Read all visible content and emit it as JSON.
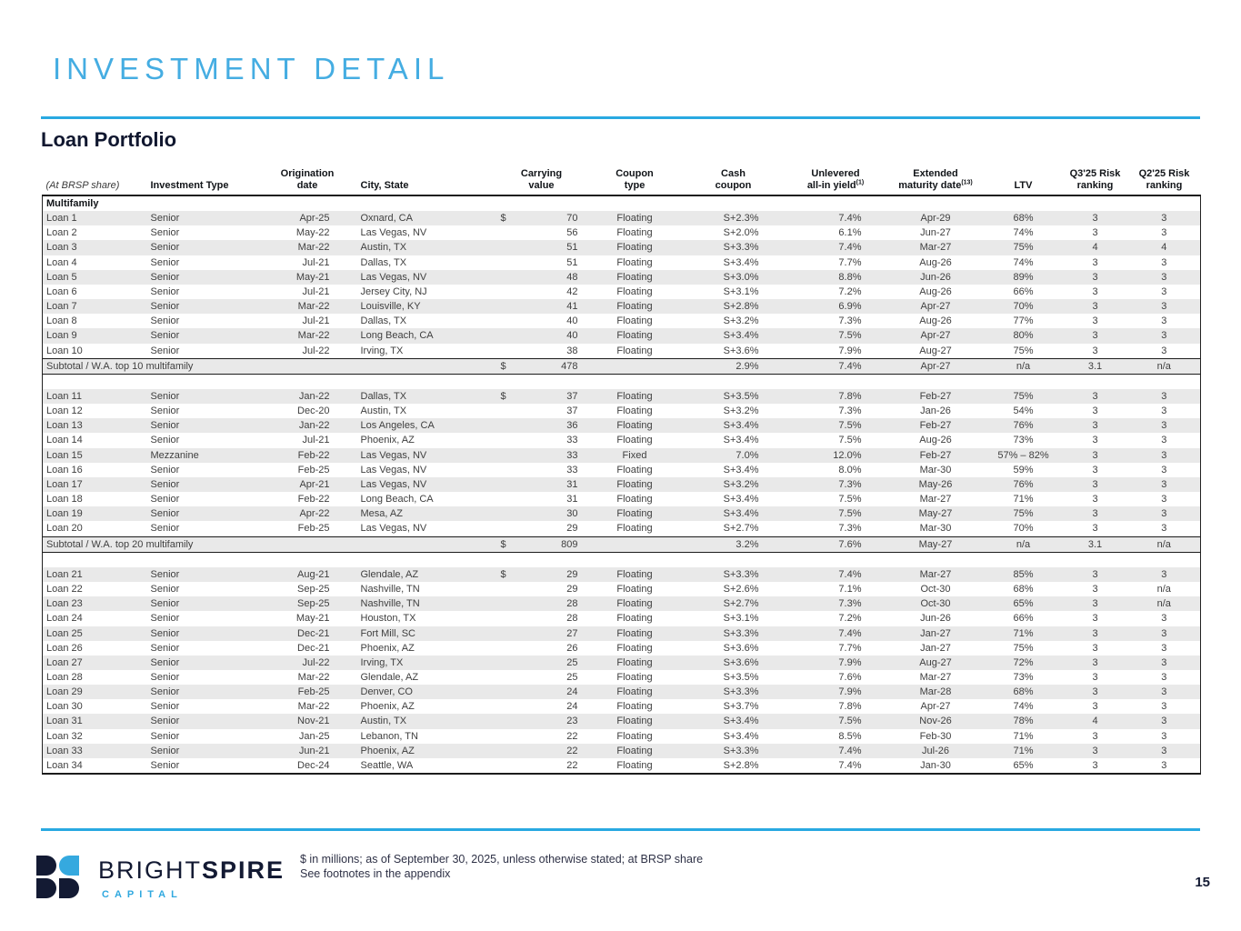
{
  "page": {
    "title": "INVESTMENT DETAIL",
    "section_title": "Loan Portfolio",
    "page_number": "15",
    "footnote_line1": "$ in millions; as of September 30, 2025, unless otherwise stated; at BRSP share",
    "footnote_line2": "See footnotes in the appendix"
  },
  "logo": {
    "brand_light": "BRIGHT",
    "brand_bold": "SPIRE",
    "subtitle": "CAPITAL"
  },
  "colors": {
    "accent_blue": "#29A9E1",
    "title_blue": "#45ADE2",
    "navy": "#131A33",
    "stripe_gray": "#E9E9E9"
  },
  "table": {
    "group_label": "Multifamily",
    "headers": {
      "share": "(At BRSP share)",
      "investment_type": "Investment Type",
      "origination_l1": "Origination",
      "origination_l2": "date",
      "city": "City, State",
      "carrying_l1": "Carrying",
      "carrying_l2": "value",
      "coupon_type_l1": "Coupon",
      "coupon_type_l2": "type",
      "cash_l1": "Cash",
      "cash_l2": "coupon",
      "unlevered_l1": "Unlevered",
      "unlevered_l2": "all-in yield",
      "unlevered_sup": "(1)",
      "maturity_l1": "Extended",
      "maturity_l2": "maturity date",
      "maturity_sup": "(13)",
      "ltv": "LTV",
      "q3_l1": "Q3'25 Risk",
      "q3_l2": "ranking",
      "q2_l1": "Q2'25 Risk",
      "q2_l2": "ranking"
    },
    "loans": [
      {
        "id": "Loan 1",
        "type": "Senior",
        "date": "Apr-25",
        "city": "Oxnard, CA",
        "d": "$",
        "v": "70",
        "ct": "Floating",
        "cc": "S+2.3%",
        "y": "7.4%",
        "m": "Apr-29",
        "ltv": "68%",
        "q3": "3",
        "q2": "3"
      },
      {
        "id": "Loan 2",
        "type": "Senior",
        "date": "May-22",
        "city": "Las Vegas, NV",
        "d": "",
        "v": "56",
        "ct": "Floating",
        "cc": "S+2.0%",
        "y": "6.1%",
        "m": "Jun-27",
        "ltv": "74%",
        "q3": "3",
        "q2": "3"
      },
      {
        "id": "Loan 3",
        "type": "Senior",
        "date": "Mar-22",
        "city": "Austin, TX",
        "d": "",
        "v": "51",
        "ct": "Floating",
        "cc": "S+3.3%",
        "y": "7.4%",
        "m": "Mar-27",
        "ltv": "75%",
        "q3": "4",
        "q2": "4"
      },
      {
        "id": "Loan 4",
        "type": "Senior",
        "date": "Jul-21",
        "city": "Dallas, TX",
        "d": "",
        "v": "51",
        "ct": "Floating",
        "cc": "S+3.4%",
        "y": "7.7%",
        "m": "Aug-26",
        "ltv": "74%",
        "q3": "3",
        "q2": "3"
      },
      {
        "id": "Loan 5",
        "type": "Senior",
        "date": "May-21",
        "city": "Las Vegas, NV",
        "d": "",
        "v": "48",
        "ct": "Floating",
        "cc": "S+3.0%",
        "y": "8.8%",
        "m": "Jun-26",
        "ltv": "89%",
        "q3": "3",
        "q2": "3"
      },
      {
        "id": "Loan 6",
        "type": "Senior",
        "date": "Jul-21",
        "city": "Jersey City, NJ",
        "d": "",
        "v": "42",
        "ct": "Floating",
        "cc": "S+3.1%",
        "y": "7.2%",
        "m": "Aug-26",
        "ltv": "66%",
        "q3": "3",
        "q2": "3"
      },
      {
        "id": "Loan 7",
        "type": "Senior",
        "date": "Mar-22",
        "city": "Louisville, KY",
        "d": "",
        "v": "41",
        "ct": "Floating",
        "cc": "S+2.8%",
        "y": "6.9%",
        "m": "Apr-27",
        "ltv": "70%",
        "q3": "3",
        "q2": "3"
      },
      {
        "id": "Loan 8",
        "type": "Senior",
        "date": "Jul-21",
        "city": "Dallas, TX",
        "d": "",
        "v": "40",
        "ct": "Floating",
        "cc": "S+3.2%",
        "y": "7.3%",
        "m": "Aug-26",
        "ltv": "77%",
        "q3": "3",
        "q2": "3"
      },
      {
        "id": "Loan 9",
        "type": "Senior",
        "date": "Mar-22",
        "city": "Long Beach, CA",
        "d": "",
        "v": "40",
        "ct": "Floating",
        "cc": "S+3.4%",
        "y": "7.5%",
        "m": "Apr-27",
        "ltv": "80%",
        "q3": "3",
        "q2": "3"
      },
      {
        "id": "Loan 10",
        "type": "Senior",
        "date": "Jul-22",
        "city": "Irving, TX",
        "d": "",
        "v": "38",
        "ct": "Floating",
        "cc": "S+3.6%",
        "y": "7.9%",
        "m": "Aug-27",
        "ltv": "75%",
        "q3": "3",
        "q2": "3"
      },
      {
        "id": "Loan 11",
        "type": "Senior",
        "date": "Jan-22",
        "city": "Dallas, TX",
        "d": "$",
        "v": "37",
        "ct": "Floating",
        "cc": "S+3.5%",
        "y": "7.8%",
        "m": "Feb-27",
        "ltv": "75%",
        "q3": "3",
        "q2": "3"
      },
      {
        "id": "Loan 12",
        "type": "Senior",
        "date": "Dec-20",
        "city": "Austin, TX",
        "d": "",
        "v": "37",
        "ct": "Floating",
        "cc": "S+3.2%",
        "y": "7.3%",
        "m": "Jan-26",
        "ltv": "54%",
        "q3": "3",
        "q2": "3"
      },
      {
        "id": "Loan 13",
        "type": "Senior",
        "date": "Jan-22",
        "city": "Los Angeles, CA",
        "d": "",
        "v": "36",
        "ct": "Floating",
        "cc": "S+3.4%",
        "y": "7.5%",
        "m": "Feb-27",
        "ltv": "76%",
        "q3": "3",
        "q2": "3"
      },
      {
        "id": "Loan 14",
        "type": "Senior",
        "date": "Jul-21",
        "city": "Phoenix, AZ",
        "d": "",
        "v": "33",
        "ct": "Floating",
        "cc": "S+3.4%",
        "y": "7.5%",
        "m": "Aug-26",
        "ltv": "73%",
        "q3": "3",
        "q2": "3"
      },
      {
        "id": "Loan 15",
        "type": "Mezzanine",
        "date": "Feb-22",
        "city": "Las Vegas, NV",
        "d": "",
        "v": "33",
        "ct": "Fixed",
        "cc": "7.0%",
        "y": "12.0%",
        "m": "Feb-27",
        "ltv": "57% – 82%",
        "q3": "3",
        "q2": "3"
      },
      {
        "id": "Loan 16",
        "type": "Senior",
        "date": "Feb-25",
        "city": "Las Vegas, NV",
        "d": "",
        "v": "33",
        "ct": "Floating",
        "cc": "S+3.4%",
        "y": "8.0%",
        "m": "Mar-30",
        "ltv": "59%",
        "q3": "3",
        "q2": "3"
      },
      {
        "id": "Loan 17",
        "type": "Senior",
        "date": "Apr-21",
        "city": "Las Vegas, NV",
        "d": "",
        "v": "31",
        "ct": "Floating",
        "cc": "S+3.2%",
        "y": "7.3%",
        "m": "May-26",
        "ltv": "76%",
        "q3": "3",
        "q2": "3"
      },
      {
        "id": "Loan 18",
        "type": "Senior",
        "date": "Feb-22",
        "city": "Long Beach, CA",
        "d": "",
        "v": "31",
        "ct": "Floating",
        "cc": "S+3.4%",
        "y": "7.5%",
        "m": "Mar-27",
        "ltv": "71%",
        "q3": "3",
        "q2": "3"
      },
      {
        "id": "Loan 19",
        "type": "Senior",
        "date": "Apr-22",
        "city": "Mesa, AZ",
        "d": "",
        "v": "30",
        "ct": "Floating",
        "cc": "S+3.4%",
        "y": "7.5%",
        "m": "May-27",
        "ltv": "75%",
        "q3": "3",
        "q2": "3"
      },
      {
        "id": "Loan 20",
        "type": "Senior",
        "date": "Feb-25",
        "city": "Las Vegas, NV",
        "d": "",
        "v": "29",
        "ct": "Floating",
        "cc": "S+2.7%",
        "y": "7.3%",
        "m": "Mar-30",
        "ltv": "70%",
        "q3": "3",
        "q2": "3"
      },
      {
        "id": "Loan 21",
        "type": "Senior",
        "date": "Aug-21",
        "city": "Glendale, AZ",
        "d": "$",
        "v": "29",
        "ct": "Floating",
        "cc": "S+3.3%",
        "y": "7.4%",
        "m": "Mar-27",
        "ltv": "85%",
        "q3": "3",
        "q2": "3"
      },
      {
        "id": "Loan 22",
        "type": "Senior",
        "date": "Sep-25",
        "city": "Nashville, TN",
        "d": "",
        "v": "29",
        "ct": "Floating",
        "cc": "S+2.6%",
        "y": "7.1%",
        "m": "Oct-30",
        "ltv": "68%",
        "q3": "3",
        "q2": "n/a"
      },
      {
        "id": "Loan 23",
        "type": "Senior",
        "date": "Sep-25",
        "city": "Nashville, TN",
        "d": "",
        "v": "28",
        "ct": "Floating",
        "cc": "S+2.7%",
        "y": "7.3%",
        "m": "Oct-30",
        "ltv": "65%",
        "q3": "3",
        "q2": "n/a"
      },
      {
        "id": "Loan 24",
        "type": "Senior",
        "date": "May-21",
        "city": "Houston, TX",
        "d": "",
        "v": "28",
        "ct": "Floating",
        "cc": "S+3.1%",
        "y": "7.2%",
        "m": "Jun-26",
        "ltv": "66%",
        "q3": "3",
        "q2": "3"
      },
      {
        "id": "Loan 25",
        "type": "Senior",
        "date": "Dec-21",
        "city": "Fort Mill, SC",
        "d": "",
        "v": "27",
        "ct": "Floating",
        "cc": "S+3.3%",
        "y": "7.4%",
        "m": "Jan-27",
        "ltv": "71%",
        "q3": "3",
        "q2": "3"
      },
      {
        "id": "Loan 26",
        "type": "Senior",
        "date": "Dec-21",
        "city": "Phoenix, AZ",
        "d": "",
        "v": "26",
        "ct": "Floating",
        "cc": "S+3.6%",
        "y": "7.7%",
        "m": "Jan-27",
        "ltv": "75%",
        "q3": "3",
        "q2": "3"
      },
      {
        "id": "Loan 27",
        "type": "Senior",
        "date": "Jul-22",
        "city": "Irving, TX",
        "d": "",
        "v": "25",
        "ct": "Floating",
        "cc": "S+3.6%",
        "y": "7.9%",
        "m": "Aug-27",
        "ltv": "72%",
        "q3": "3",
        "q2": "3"
      },
      {
        "id": "Loan 28",
        "type": "Senior",
        "date": "Mar-22",
        "city": "Glendale, AZ",
        "d": "",
        "v": "25",
        "ct": "Floating",
        "cc": "S+3.5%",
        "y": "7.6%",
        "m": "Mar-27",
        "ltv": "73%",
        "q3": "3",
        "q2": "3"
      },
      {
        "id": "Loan 29",
        "type": "Senior",
        "date": "Feb-25",
        "city": "Denver, CO",
        "d": "",
        "v": "24",
        "ct": "Floating",
        "cc": "S+3.3%",
        "y": "7.9%",
        "m": "Mar-28",
        "ltv": "68%",
        "q3": "3",
        "q2": "3"
      },
      {
        "id": "Loan 30",
        "type": "Senior",
        "date": "Mar-22",
        "city": "Phoenix, AZ",
        "d": "",
        "v": "24",
        "ct": "Floating",
        "cc": "S+3.7%",
        "y": "7.8%",
        "m": "Apr-27",
        "ltv": "74%",
        "q3": "3",
        "q2": "3"
      },
      {
        "id": "Loan 31",
        "type": "Senior",
        "date": "Nov-21",
        "city": "Austin, TX",
        "d": "",
        "v": "23",
        "ct": "Floating",
        "cc": "S+3.4%",
        "y": "7.5%",
        "m": "Nov-26",
        "ltv": "78%",
        "q3": "4",
        "q2": "3"
      },
      {
        "id": "Loan 32",
        "type": "Senior",
        "date": "Jan-25",
        "city": "Lebanon, TN",
        "d": "",
        "v": "22",
        "ct": "Floating",
        "cc": "S+3.4%",
        "y": "8.5%",
        "m": "Feb-30",
        "ltv": "71%",
        "q3": "3",
        "q2": "3"
      },
      {
        "id": "Loan 33",
        "type": "Senior",
        "date": "Jun-21",
        "city": "Phoenix, AZ",
        "d": "",
        "v": "22",
        "ct": "Floating",
        "cc": "S+3.3%",
        "y": "7.4%",
        "m": "Jul-26",
        "ltv": "71%",
        "q3": "3",
        "q2": "3"
      },
      {
        "id": "Loan 34",
        "type": "Senior",
        "date": "Dec-24",
        "city": "Seattle, WA",
        "d": "",
        "v": "22",
        "ct": "Floating",
        "cc": "S+2.8%",
        "y": "7.4%",
        "m": "Jan-30",
        "ltv": "65%",
        "q3": "3",
        "q2": "3"
      }
    ],
    "subtotals": [
      {
        "after": 10,
        "label": "Subtotal / W.A. top 10 multifamily",
        "d": "$",
        "v": "478",
        "cc": "2.9%",
        "y": "7.4%",
        "m": "Apr-27",
        "ltv": "n/a",
        "q3": "3.1",
        "q2": "n/a"
      },
      {
        "after": 20,
        "label": "Subtotal / W.A. top 20 multifamily",
        "d": "$",
        "v": "809",
        "cc": "3.2%",
        "y": "7.6%",
        "m": "May-27",
        "ltv": "n/a",
        "q3": "3.1",
        "q2": "n/a"
      }
    ]
  }
}
